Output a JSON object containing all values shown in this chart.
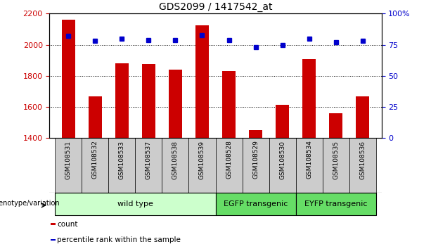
{
  "title": "GDS2099 / 1417542_at",
  "categories": [
    "GSM108531",
    "GSM108532",
    "GSM108533",
    "GSM108537",
    "GSM108538",
    "GSM108539",
    "GSM108528",
    "GSM108529",
    "GSM108530",
    "GSM108534",
    "GSM108535",
    "GSM108536"
  ],
  "bar_values": [
    2160,
    1670,
    1880,
    1875,
    1840,
    2125,
    1830,
    1450,
    1615,
    1910,
    1560,
    1670
  ],
  "percentile_values": [
    82,
    78,
    80,
    79,
    79,
    83,
    79,
    73,
    75,
    80,
    77,
    78
  ],
  "bar_color": "#cc0000",
  "percentile_color": "#0000cc",
  "ylim_left": [
    1400,
    2200
  ],
  "ylim_right": [
    0,
    100
  ],
  "yticks_left": [
    1400,
    1600,
    1800,
    2000,
    2200
  ],
  "yticks_right": [
    0,
    25,
    50,
    75,
    100
  ],
  "ytick_labels_right": [
    "0",
    "25",
    "50",
    "75",
    "100%"
  ],
  "groups": [
    {
      "label": "wild type",
      "start": 0,
      "end": 6,
      "color": "#ccffcc"
    },
    {
      "label": "EGFP transgenic",
      "start": 6,
      "end": 9,
      "color": "#66dd66"
    },
    {
      "label": "EYFP transgenic",
      "start": 9,
      "end": 12,
      "color": "#66dd66"
    }
  ],
  "group_label_prefix": "genotype/variation",
  "legend_items": [
    {
      "label": "count",
      "color": "#cc0000"
    },
    {
      "label": "percentile rank within the sample",
      "color": "#0000cc"
    }
  ],
  "tick_area_color": "#cccccc",
  "bar_width": 0.5
}
